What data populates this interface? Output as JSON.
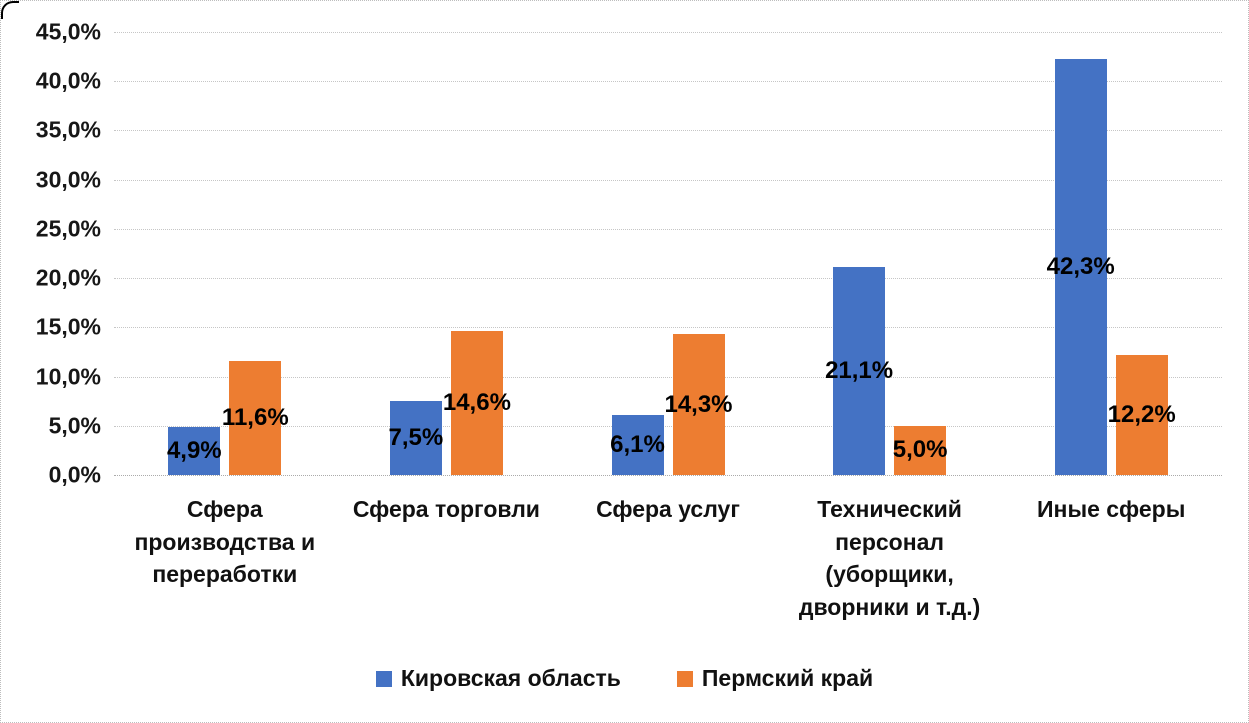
{
  "chart_data": {
    "type": "bar",
    "title": "",
    "xlabel": "",
    "ylabel": "",
    "categories": [
      "Сфера\nпроизводства и\nпереработки",
      "Сфера торговли",
      "Сфера услуг",
      "Технический\nперсонал\n(уборщики,\nдворники и т.д.)",
      "Иные сферы"
    ],
    "series": [
      {
        "name": "Кировская область",
        "color": "#4472C4",
        "values": [
          4.9,
          7.5,
          6.1,
          21.1,
          42.3
        ],
        "labels": [
          "4,9%",
          "7,5%",
          "6,1%",
          "21,1%",
          "42,3%"
        ]
      },
      {
        "name": "Пермский край",
        "color": "#ED7D31",
        "values": [
          11.6,
          14.6,
          14.3,
          5.0,
          12.2
        ],
        "labels": [
          "11,6%",
          "14,6%",
          "14,3%",
          "5,0%",
          "12,2%"
        ]
      }
    ],
    "y_axis": {
      "min": 0,
      "max": 45,
      "step": 5,
      "tick_labels": [
        "0,0%",
        "5,0%",
        "10,0%",
        "15,0%",
        "20,0%",
        "25,0%",
        "30,0%",
        "35,0%",
        "40,0%",
        "45,0%"
      ]
    },
    "grid": true,
    "legend_position": "bottom",
    "data_label_position": "center",
    "ylim": [
      0,
      45
    ]
  },
  "colors": {
    "gridline": "#c6c6c6",
    "text": "#111111",
    "series_blue": "#4472C4",
    "series_orange": "#ED7D31"
  }
}
